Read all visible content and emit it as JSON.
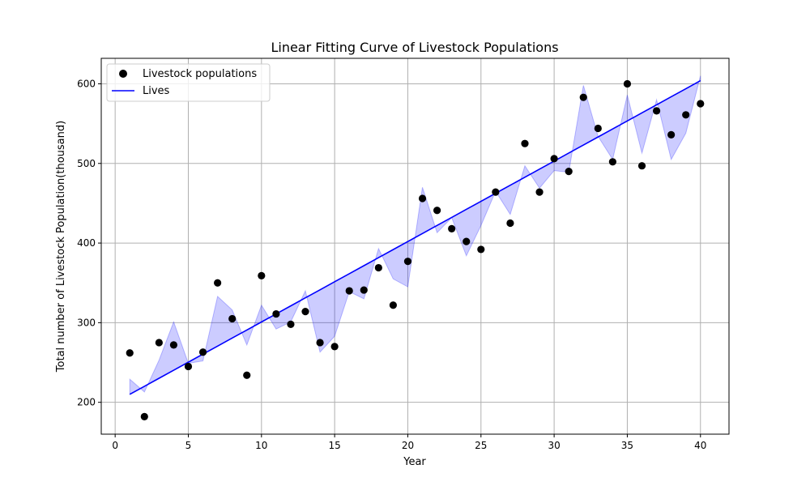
{
  "chart_data": {
    "type": "scatter",
    "title": "Linear Fitting Curve of Livestock Populations",
    "xlabel": "Year",
    "ylabel": "Total number of Livestock Population(thousand)",
    "xlim": [
      -0.95,
      41.95
    ],
    "ylim": [
      160,
      632
    ],
    "xticks": [
      0,
      5,
      10,
      15,
      20,
      25,
      30,
      35,
      40
    ],
    "yticks": [
      200,
      300,
      400,
      500,
      600
    ],
    "grid": true,
    "legend": "top-left",
    "x": [
      1,
      2,
      3,
      4,
      5,
      6,
      7,
      8,
      9,
      10,
      11,
      12,
      13,
      14,
      15,
      16,
      17,
      18,
      19,
      20,
      21,
      22,
      23,
      24,
      25,
      26,
      27,
      28,
      29,
      30,
      31,
      32,
      33,
      34,
      35,
      36,
      37,
      38,
      39,
      40
    ],
    "series": [
      {
        "name": "Livestock populations",
        "kind": "scatter",
        "color": "#000000",
        "values": [
          262,
          182,
          275,
          272,
          245,
          263,
          350,
          305,
          234,
          359,
          311,
          298,
          314,
          275,
          270,
          340,
          341,
          369,
          322,
          377,
          456,
          441,
          418,
          402,
          392,
          464,
          425,
          525,
          464,
          506,
          490,
          583,
          544,
          502,
          600,
          497,
          566,
          536,
          561,
          575
        ]
      },
      {
        "name": "Lives",
        "kind": "line",
        "color": "#0000ff",
        "values": [
          210,
          220.1,
          230.2,
          240.3,
          250.4,
          260.5,
          270.6,
          280.7,
          290.8,
          300.9,
          311,
          321.1,
          331.2,
          341.3,
          351.4,
          361.5,
          371.6,
          381.7,
          391.8,
          401.9,
          412,
          422.1,
          432.2,
          442.3,
          452.4,
          462.5,
          472.6,
          482.7,
          492.8,
          502.9,
          513,
          523.1,
          533.2,
          543.3,
          553.4,
          563.5,
          573.6,
          583.7,
          593.8,
          604
        ]
      },
      {
        "kind": "band",
        "color": "#0000ff",
        "opacity": 0.2,
        "values": [
          229,
          213,
          253,
          301,
          249,
          252,
          333,
          316,
          272,
          322,
          292,
          301,
          340,
          263,
          283,
          339,
          330,
          393,
          355,
          345,
          470,
          413,
          432,
          384,
          422,
          465,
          436,
          497,
          469,
          491,
          489,
          598,
          534,
          505,
          586,
          513,
          580,
          505,
          538,
          610
        ]
      }
    ]
  }
}
